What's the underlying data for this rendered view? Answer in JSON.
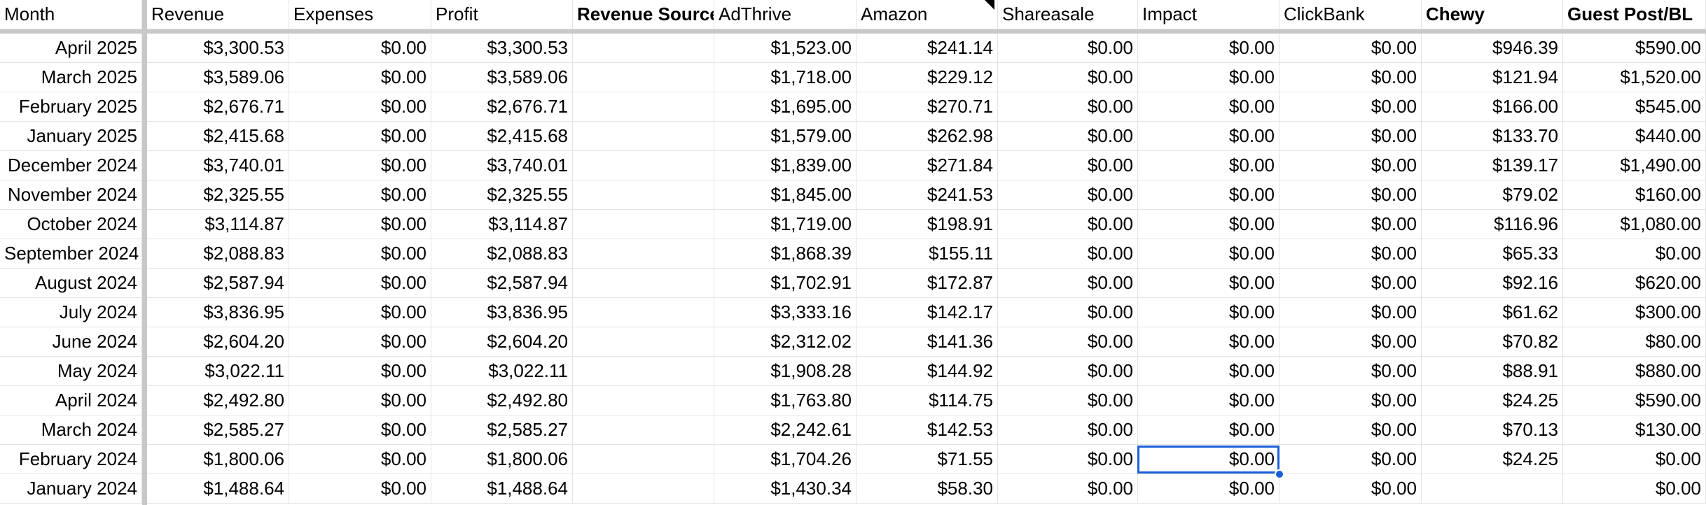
{
  "columns": [
    {
      "header": "Month",
      "bold": false
    },
    {
      "header": "Revenue",
      "bold": false
    },
    {
      "header": "Expenses",
      "bold": false
    },
    {
      "header": "Profit",
      "bold": false
    },
    {
      "header": "Revenue Sources",
      "bold": true
    },
    {
      "header": "AdThrive",
      "bold": false
    },
    {
      "header": "Amazon",
      "bold": false
    },
    {
      "header": "Shareasale",
      "bold": false
    },
    {
      "header": "Impact",
      "bold": false
    },
    {
      "header": "ClickBank",
      "bold": false
    },
    {
      "header": "Chewy",
      "bold": true
    },
    {
      "header": "Guest Post/BL",
      "bold": true
    }
  ],
  "rows": [
    [
      "April 2025",
      "$3,300.53",
      "$0.00",
      "$3,300.53",
      "",
      "$1,523.00",
      "$241.14",
      "$0.00",
      "$0.00",
      "$0.00",
      "$946.39",
      "$590.00"
    ],
    [
      "March 2025",
      "$3,589.06",
      "$0.00",
      "$3,589.06",
      "",
      "$1,718.00",
      "$229.12",
      "$0.00",
      "$0.00",
      "$0.00",
      "$121.94",
      "$1,520.00"
    ],
    [
      "February 2025",
      "$2,676.71",
      "$0.00",
      "$2,676.71",
      "",
      "$1,695.00",
      "$270.71",
      "$0.00",
      "$0.00",
      "$0.00",
      "$166.00",
      "$545.00"
    ],
    [
      "January 2025",
      "$2,415.68",
      "$0.00",
      "$2,415.68",
      "",
      "$1,579.00",
      "$262.98",
      "$0.00",
      "$0.00",
      "$0.00",
      "$133.70",
      "$440.00"
    ],
    [
      "December 2024",
      "$3,740.01",
      "$0.00",
      "$3,740.01",
      "",
      "$1,839.00",
      "$271.84",
      "$0.00",
      "$0.00",
      "$0.00",
      "$139.17",
      "$1,490.00"
    ],
    [
      "November 2024",
      "$2,325.55",
      "$0.00",
      "$2,325.55",
      "",
      "$1,845.00",
      "$241.53",
      "$0.00",
      "$0.00",
      "$0.00",
      "$79.02",
      "$160.00"
    ],
    [
      "October 2024",
      "$3,114.87",
      "$0.00",
      "$3,114.87",
      "",
      "$1,719.00",
      "$198.91",
      "$0.00",
      "$0.00",
      "$0.00",
      "$116.96",
      "$1,080.00"
    ],
    [
      "September 2024",
      "$2,088.83",
      "$0.00",
      "$2,088.83",
      "",
      "$1,868.39",
      "$155.11",
      "$0.00",
      "$0.00",
      "$0.00",
      "$65.33",
      "$0.00"
    ],
    [
      "August 2024",
      "$2,587.94",
      "$0.00",
      "$2,587.94",
      "",
      "$1,702.91",
      "$172.87",
      "$0.00",
      "$0.00",
      "$0.00",
      "$92.16",
      "$620.00"
    ],
    [
      "July 2024",
      "$3,836.95",
      "$0.00",
      "$3,836.95",
      "",
      "$3,333.16",
      "$142.17",
      "$0.00",
      "$0.00",
      "$0.00",
      "$61.62",
      "$300.00"
    ],
    [
      "June 2024",
      "$2,604.20",
      "$0.00",
      "$2,604.20",
      "",
      "$2,312.02",
      "$141.36",
      "$0.00",
      "$0.00",
      "$0.00",
      "$70.82",
      "$80.00"
    ],
    [
      "May 2024",
      "$3,022.11",
      "$0.00",
      "$3,022.11",
      "",
      "$1,908.28",
      "$144.92",
      "$0.00",
      "$0.00",
      "$0.00",
      "$88.91",
      "$880.00"
    ],
    [
      "April 2024",
      "$2,492.80",
      "$0.00",
      "$2,492.80",
      "",
      "$1,763.80",
      "$114.75",
      "$0.00",
      "$0.00",
      "$0.00",
      "$24.25",
      "$590.00"
    ],
    [
      "March 2024",
      "$2,585.27",
      "$0.00",
      "$2,585.27",
      "",
      "$2,242.61",
      "$142.53",
      "$0.00",
      "$0.00",
      "$0.00",
      "$70.13",
      "$130.00"
    ],
    [
      "February 2024",
      "$1,800.06",
      "$0.00",
      "$1,800.06",
      "",
      "$1,704.26",
      "$71.55",
      "$0.00",
      "$0.00",
      "$0.00",
      "$24.25",
      "$0.00"
    ],
    [
      "January 2024",
      "$1,488.64",
      "$0.00",
      "$1,488.64",
      "",
      "$1,430.34",
      "$58.30",
      "$0.00",
      "$0.00",
      "$0.00",
      "",
      "$0.00"
    ]
  ],
  "selected_cell": {
    "row": 14,
    "column": "Impact"
  },
  "colors": {
    "grid": "#e2e3e3",
    "frozen_separator": "#c8c8c8",
    "selection": "#1a5fd8"
  }
}
